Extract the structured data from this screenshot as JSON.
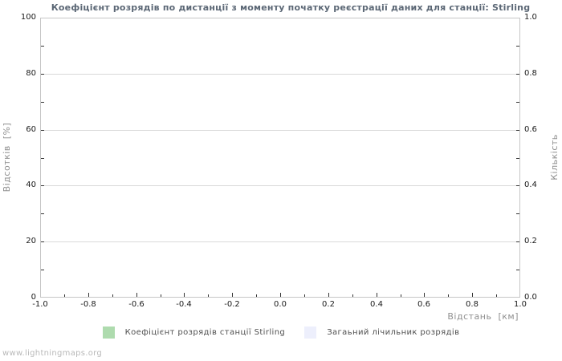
{
  "chart_data": {
    "type": "line",
    "title": "Коефіцієнт розрядів по дистанції з моменту початку реєстрації даних для станції: Stirling",
    "x_axis": {
      "label": "Відстань  [км]",
      "range": [
        -1.0,
        1.0
      ],
      "tick_labels": [
        "-1.0",
        "-0.8",
        "-0.6",
        "-0.4",
        "-0.2",
        "0.0",
        "0.2",
        "0.4",
        "0.6",
        "0.8",
        "1.0"
      ],
      "minor_tick_step": 0.1
    },
    "y_axis_left": {
      "label": "Відсотків  [%]",
      "range": [
        0,
        100
      ],
      "tick_labels_top_to_bottom": [
        "100",
        "80",
        "60",
        "40",
        "20",
        "0"
      ],
      "minor_tick_step": 10
    },
    "y_axis_right": {
      "label": "Кількість",
      "range": [
        0.0,
        1.0
      ],
      "tick_labels_top_to_bottom": [
        "1.0",
        "0.8",
        "0.6",
        "0.4",
        "0.2",
        "0.0"
      ],
      "minor_tick_step": 0.1
    },
    "grid": true,
    "legend_position": "bottom",
    "series": [
      {
        "name": "Коефіцієнт розрядів станції Stirling",
        "color": "#aedbae",
        "points": []
      },
      {
        "name": "Загаьний лічильник розрядів",
        "color": "#edeffc",
        "points": []
      }
    ]
  },
  "footer": {
    "watermark": "www.lightningmaps.org"
  },
  "colors": {
    "title_text": "#5b6775",
    "grid_line": "#d9d9d9",
    "plot_border": "#c6c6c6",
    "tick_mark": "#333333",
    "tick_label": "#1a1a1a",
    "axis_label": "#8f8f8f",
    "legend_text": "#4f4f4f",
    "watermark": "#b9b9b9"
  }
}
